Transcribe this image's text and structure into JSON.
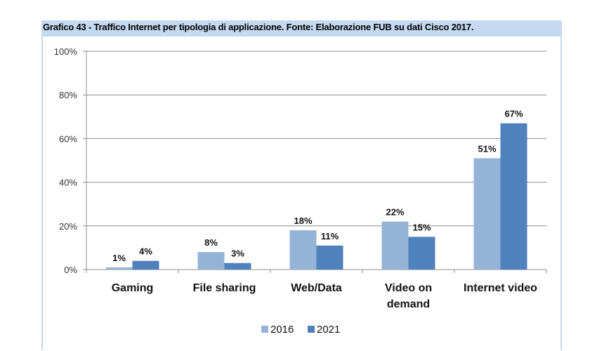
{
  "chart_data": {
    "type": "bar",
    "title": "Grafico 43 - Traffico Internet per tipologia di applicazione. Fonte: Elaborazione FUB su dati Cisco 2017.",
    "categories": [
      [
        "Gaming"
      ],
      [
        "File sharing"
      ],
      [
        "Web/Data"
      ],
      [
        "Video on",
        "demand"
      ],
      [
        "Internet video"
      ]
    ],
    "series": [
      {
        "name": "2016",
        "values": [
          1,
          8,
          18,
          22,
          51
        ],
        "labels": [
          "1%",
          "8%",
          "18%",
          "22%",
          "51%"
        ],
        "color": "#95b3d7"
      },
      {
        "name": "2021",
        "values": [
          4,
          3,
          11,
          15,
          67
        ],
        "labels": [
          "4%",
          "3%",
          "11%",
          "15%",
          "67%"
        ],
        "color": "#4f81bd"
      }
    ],
    "ylim": [
      0,
      100
    ],
    "yticks": [
      0,
      20,
      40,
      60,
      80,
      100
    ],
    "ytick_labels": [
      "0%",
      "20%",
      "40%",
      "60%",
      "80%",
      "100%"
    ],
    "grid": true,
    "legend": "bottom-center",
    "xlabel": "",
    "ylabel": ""
  }
}
